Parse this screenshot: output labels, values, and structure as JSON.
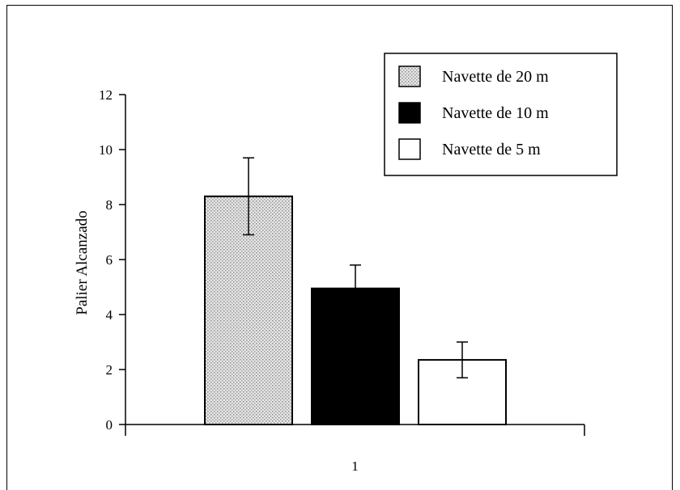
{
  "chart_data": {
    "type": "bar",
    "title": "",
    "xlabel": "",
    "ylabel": "Palier Alcanzado",
    "ylim": [
      0,
      12
    ],
    "yticks": [
      0,
      2,
      4,
      6,
      8,
      10,
      12
    ],
    "categories": [
      "1"
    ],
    "series": [
      {
        "name": "Navette de 20 m",
        "values": [
          8.3
        ],
        "error": [
          1.4
        ],
        "fill": "dotted-gray",
        "color": "#cfcfcf"
      },
      {
        "name": "Navette de 10 m",
        "values": [
          4.95
        ],
        "error": [
          0.85
        ],
        "fill": "solid",
        "color": "#000000"
      },
      {
        "name": "Navette de 5 m",
        "values": [
          2.35
        ],
        "error": [
          0.65
        ],
        "fill": "white",
        "color": "#ffffff"
      }
    ],
    "legend_position": "top-right",
    "grid": false
  }
}
